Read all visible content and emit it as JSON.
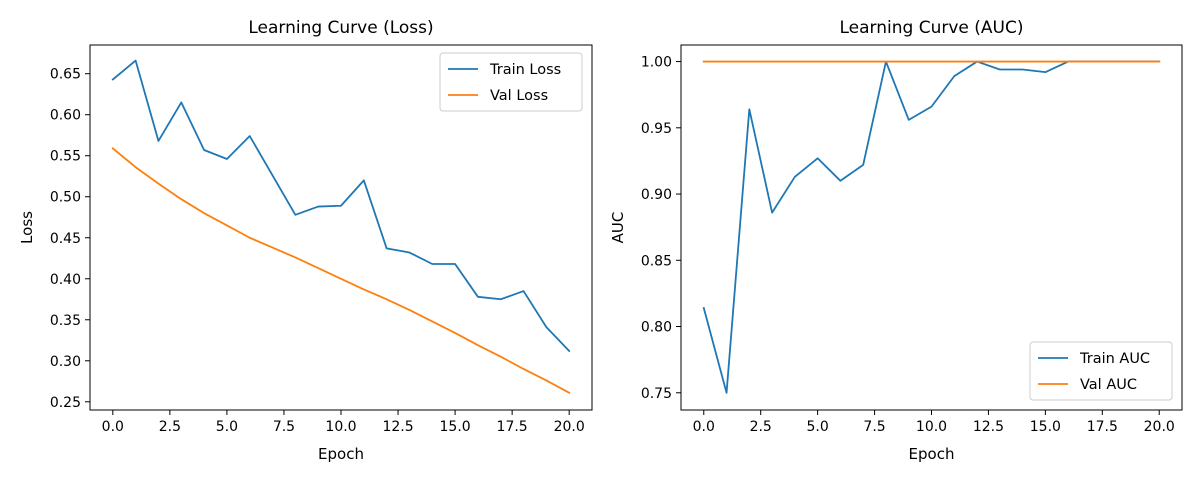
{
  "colors": {
    "train": "#1f77b4",
    "val": "#ff7f0e"
  },
  "chart_data": [
    {
      "type": "line",
      "title": "Learning Curve (Loss)",
      "xlabel": "Epoch",
      "ylabel": "Loss",
      "xlim": [
        -1,
        21
      ],
      "ylim": [
        0.24,
        0.685
      ],
      "xticks": [
        0,
        2.5,
        5,
        7.5,
        10,
        12.5,
        15,
        17.5,
        20
      ],
      "xtick_labels": [
        "0.0",
        "2.5",
        "5.0",
        "7.5",
        "10.0",
        "12.5",
        "15.0",
        "17.5",
        "20.0"
      ],
      "yticks": [
        0.25,
        0.3,
        0.35,
        0.4,
        0.45,
        0.5,
        0.55,
        0.6,
        0.65
      ],
      "ytick_labels": [
        "0.25",
        "0.30",
        "0.35",
        "0.40",
        "0.45",
        "0.50",
        "0.55",
        "0.60",
        "0.65"
      ],
      "grid": false,
      "legend_position": "top-right",
      "x": [
        0,
        1,
        2,
        3,
        4,
        5,
        6,
        7,
        8,
        9,
        10,
        11,
        12,
        13,
        14,
        15,
        16,
        17,
        18,
        19,
        20
      ],
      "series": [
        {
          "name": "Train Loss",
          "color": "#1f77b4",
          "values": [
            0.643,
            0.666,
            0.568,
            0.615,
            0.557,
            0.546,
            0.574,
            0.526,
            0.478,
            0.488,
            0.489,
            0.52,
            0.437,
            0.432,
            0.418,
            0.418,
            0.378,
            0.375,
            0.385,
            0.341,
            0.312
          ]
        },
        {
          "name": "Val Loss",
          "color": "#ff7f0e",
          "values": [
            0.559,
            0.536,
            0.516,
            0.497,
            0.48,
            0.465,
            0.45,
            0.438,
            0.426,
            0.413,
            0.4,
            0.387,
            0.375,
            0.362,
            0.348,
            0.334,
            0.319,
            0.305,
            0.29,
            0.276,
            0.261
          ]
        }
      ]
    },
    {
      "type": "line",
      "title": "Learning Curve (AUC)",
      "xlabel": "Epoch",
      "ylabel": "AUC",
      "xlim": [
        -1,
        21
      ],
      "ylim": [
        0.737,
        1.0125
      ],
      "xticks": [
        0,
        2.5,
        5,
        7.5,
        10,
        12.5,
        15,
        17.5,
        20
      ],
      "xtick_labels": [
        "0.0",
        "2.5",
        "5.0",
        "7.5",
        "10.0",
        "12.5",
        "15.0",
        "17.5",
        "20.0"
      ],
      "yticks": [
        0.75,
        0.8,
        0.85,
        0.9,
        0.95,
        1.0
      ],
      "ytick_labels": [
        "0.75",
        "0.80",
        "0.85",
        "0.90",
        "0.95",
        "1.00"
      ],
      "grid": false,
      "legend_position": "bottom-right",
      "x": [
        0,
        1,
        2,
        3,
        4,
        5,
        6,
        7,
        8,
        9,
        10,
        11,
        12,
        13,
        14,
        15,
        16,
        17,
        18,
        19,
        20
      ],
      "series": [
        {
          "name": "Train AUC",
          "color": "#1f77b4",
          "values": [
            0.814,
            0.75,
            0.964,
            0.886,
            0.913,
            0.927,
            0.91,
            0.922,
            1.0,
            0.956,
            0.966,
            0.989,
            1.0,
            0.994,
            0.994,
            0.992,
            1.0,
            1.0,
            1.0,
            1.0,
            1.0
          ]
        },
        {
          "name": "Val AUC",
          "color": "#ff7f0e",
          "values": [
            1,
            1,
            1,
            1,
            1,
            1,
            1,
            1,
            1,
            1,
            1,
            1,
            1,
            1,
            1,
            1,
            1,
            1,
            1,
            1,
            1
          ]
        }
      ]
    }
  ]
}
